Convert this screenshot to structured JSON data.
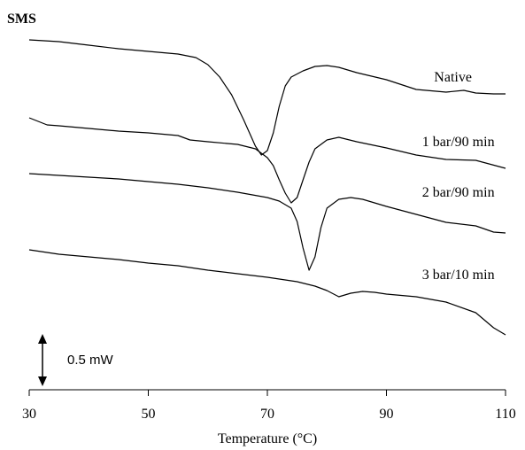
{
  "chart_data": {
    "type": "line",
    "title": "SMS",
    "xlabel": "Temperature (°C)",
    "ylabel": "",
    "xlim": [
      30,
      110
    ],
    "xticks": [
      30,
      50,
      70,
      90,
      110
    ],
    "xtick_labels": [
      "30",
      "50",
      "70",
      "90",
      "110"
    ],
    "y_units": "mW",
    "y_axis_shown": false,
    "grid": false,
    "scale_bar": {
      "label": "0.5 mW",
      "value": 0.5
    },
    "series": [
      {
        "name": "Native",
        "color": "#000000",
        "points": [
          [
            30,
            0
          ],
          [
            35,
            -0.02
          ],
          [
            40,
            -0.06
          ],
          [
            45,
            -0.1
          ],
          [
            50,
            -0.13
          ],
          [
            55,
            -0.16
          ],
          [
            58,
            -0.2
          ],
          [
            60,
            -0.28
          ],
          [
            62,
            -0.42
          ],
          [
            64,
            -0.62
          ],
          [
            66,
            -0.9
          ],
          [
            67,
            -1.05
          ],
          [
            68,
            -1.2
          ],
          [
            69,
            -1.3
          ],
          [
            70,
            -1.25
          ],
          [
            71,
            -1.05
          ],
          [
            72,
            -0.75
          ],
          [
            73,
            -0.52
          ],
          [
            74,
            -0.42
          ],
          [
            76,
            -0.35
          ],
          [
            78,
            -0.3
          ],
          [
            80,
            -0.29
          ],
          [
            82,
            -0.31
          ],
          [
            85,
            -0.37
          ],
          [
            90,
            -0.45
          ],
          [
            95,
            -0.56
          ],
          [
            100,
            -0.59
          ],
          [
            103,
            -0.57
          ],
          [
            105,
            -0.6
          ],
          [
            108,
            -0.61
          ],
          [
            110,
            -0.61
          ]
        ]
      },
      {
        "name": "1 bar/90 min",
        "color": "#000000",
        "points": [
          [
            30,
            -0.88
          ],
          [
            33,
            -0.96
          ],
          [
            35,
            -0.97
          ],
          [
            40,
            -1.0
          ],
          [
            45,
            -1.03
          ],
          [
            50,
            -1.05
          ],
          [
            55,
            -1.08
          ],
          [
            57,
            -1.13
          ],
          [
            60,
            -1.15
          ],
          [
            65,
            -1.18
          ],
          [
            68,
            -1.23
          ],
          [
            70,
            -1.33
          ],
          [
            71,
            -1.42
          ],
          [
            72,
            -1.58
          ],
          [
            73,
            -1.73
          ],
          [
            74,
            -1.84
          ],
          [
            75,
            -1.78
          ],
          [
            76,
            -1.58
          ],
          [
            77,
            -1.38
          ],
          [
            78,
            -1.23
          ],
          [
            80,
            -1.13
          ],
          [
            82,
            -1.1
          ],
          [
            85,
            -1.15
          ],
          [
            90,
            -1.22
          ],
          [
            95,
            -1.3
          ],
          [
            100,
            -1.35
          ],
          [
            105,
            -1.36
          ],
          [
            110,
            -1.45
          ]
        ]
      },
      {
        "name": "2 bar/90 min",
        "color": "#000000",
        "points": [
          [
            30,
            -1.51
          ],
          [
            35,
            -1.53
          ],
          [
            40,
            -1.55
          ],
          [
            45,
            -1.57
          ],
          [
            50,
            -1.6
          ],
          [
            55,
            -1.63
          ],
          [
            60,
            -1.67
          ],
          [
            65,
            -1.72
          ],
          [
            70,
            -1.78
          ],
          [
            72,
            -1.82
          ],
          [
            74,
            -1.9
          ],
          [
            75,
            -2.05
          ],
          [
            76,
            -2.35
          ],
          [
            77,
            -2.6
          ],
          [
            78,
            -2.45
          ],
          [
            79,
            -2.12
          ],
          [
            80,
            -1.9
          ],
          [
            82,
            -1.8
          ],
          [
            84,
            -1.78
          ],
          [
            86,
            -1.8
          ],
          [
            90,
            -1.88
          ],
          [
            95,
            -1.97
          ],
          [
            100,
            -2.06
          ],
          [
            105,
            -2.1
          ],
          [
            108,
            -2.17
          ],
          [
            110,
            -2.18
          ]
        ]
      },
      {
        "name": "3 bar/10 min",
        "color": "#000000",
        "points": [
          [
            30,
            -2.37
          ],
          [
            35,
            -2.42
          ],
          [
            40,
            -2.45
          ],
          [
            45,
            -2.48
          ],
          [
            50,
            -2.52
          ],
          [
            55,
            -2.55
          ],
          [
            60,
            -2.6
          ],
          [
            65,
            -2.64
          ],
          [
            70,
            -2.68
          ],
          [
            75,
            -2.73
          ],
          [
            78,
            -2.78
          ],
          [
            80,
            -2.83
          ],
          [
            82,
            -2.9
          ],
          [
            84,
            -2.86
          ],
          [
            86,
            -2.84
          ],
          [
            88,
            -2.85
          ],
          [
            90,
            -2.87
          ],
          [
            95,
            -2.9
          ],
          [
            100,
            -2.96
          ],
          [
            105,
            -3.08
          ],
          [
            108,
            -3.25
          ],
          [
            110,
            -3.33
          ]
        ]
      }
    ],
    "annotations": [
      {
        "text": "Native",
        "series": "Native"
      },
      {
        "text": "1 bar/90 min",
        "series": "1 bar/90 min"
      },
      {
        "text": "2 bar/90 min",
        "series": "2 bar/90 min"
      },
      {
        "text": "3 bar/10 min",
        "series": "3 bar/10 min"
      }
    ]
  }
}
